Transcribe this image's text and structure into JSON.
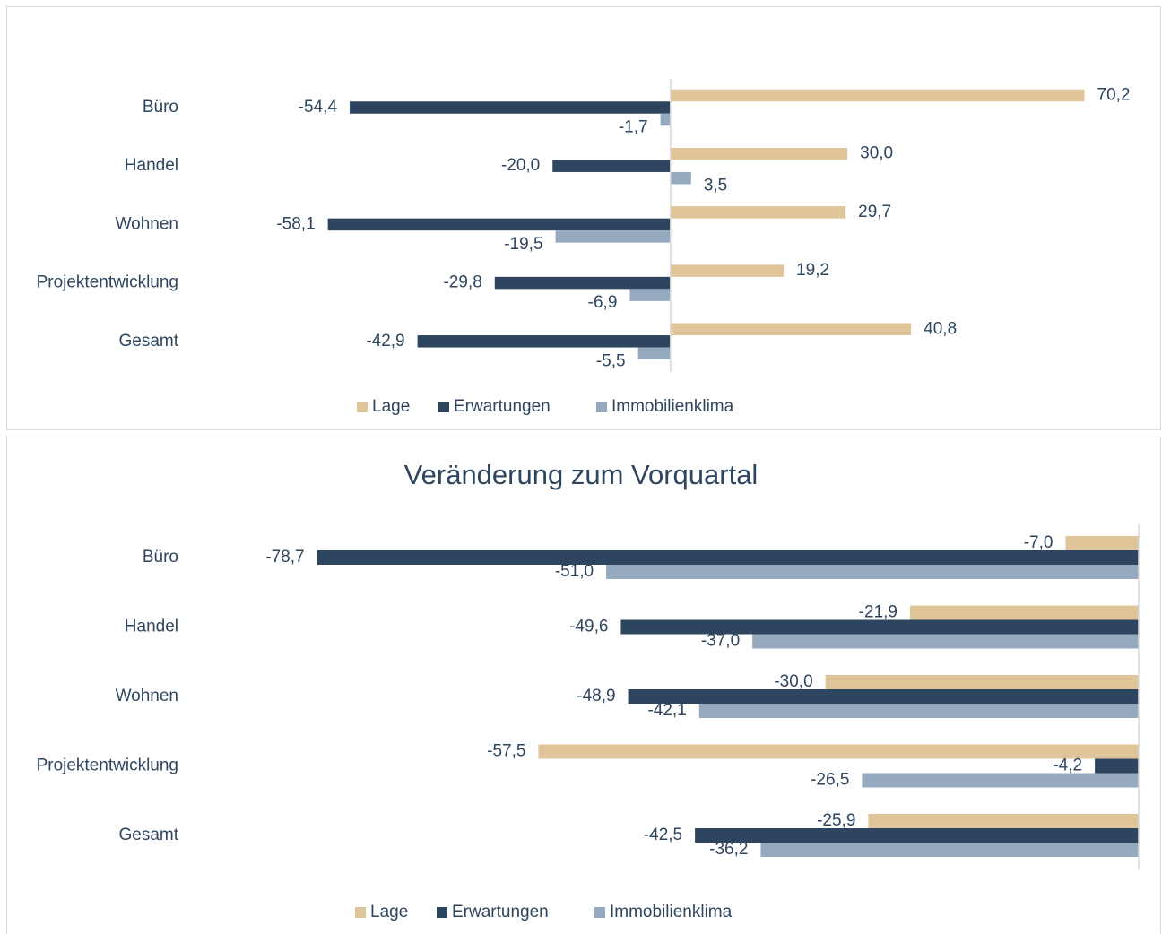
{
  "chart_data": [
    {
      "type": "bar",
      "orientation": "horizontal",
      "categories": [
        "Büro",
        "Handel",
        "Wohnen",
        "Projektentwicklung",
        "Gesamt"
      ],
      "series": [
        {
          "name": "Lage",
          "color": "#e0c49a",
          "values": [
            70.2,
            30.0,
            29.7,
            19.2,
            40.8
          ],
          "value_labels": [
            "70,2",
            "30,0",
            "29,7",
            "19,2",
            "40,8"
          ]
        },
        {
          "name": "Erwartungen",
          "color": "#2e4560",
          "values": [
            -54.4,
            -20.0,
            -58.1,
            -29.8,
            -42.9
          ],
          "value_labels": [
            "-54,4",
            "-20,0",
            "-58,1",
            "-29,8",
            "-42,9"
          ]
        },
        {
          "name": "Immobilienklima",
          "color": "#95a9bf",
          "values": [
            -1.7,
            3.5,
            -19.5,
            -6.9,
            -5.5
          ],
          "value_labels": [
            "-1,7",
            "3,5",
            "-19,5",
            "-6,9",
            "-5,5"
          ]
        }
      ],
      "xlim": [
        -80,
        80
      ],
      "legend": "bottom"
    },
    {
      "type": "bar",
      "orientation": "horizontal",
      "title": "Veränderung zum Vorquartal",
      "categories": [
        "Büro",
        "Handel",
        "Wohnen",
        "Projektentwicklung",
        "Gesamt"
      ],
      "series": [
        {
          "name": "Lage",
          "color": "#e0c49a",
          "values": [
            -7.0,
            -21.9,
            -30.0,
            -57.5,
            -25.9
          ],
          "value_labels": [
            "-7,0",
            "-21,9",
            "-30,0",
            "-57,5",
            "-25,9"
          ]
        },
        {
          "name": "Erwartungen",
          "color": "#2e4560",
          "values": [
            -78.7,
            -49.6,
            -48.9,
            -4.2,
            -42.5
          ],
          "value_labels": [
            "-78,7",
            "-49,6",
            "-48,9",
            "-4,2",
            "-42,5"
          ]
        },
        {
          "name": "Immobilienklima",
          "color": "#95a9bf",
          "values": [
            -51.0,
            -37.0,
            -42.1,
            -26.5,
            -36.2
          ],
          "value_labels": [
            "-51,0",
            "-37,0",
            "-42,1",
            "-26,5",
            "-36,2"
          ]
        }
      ],
      "xlim": [
        -90,
        0
      ],
      "legend": "bottom"
    }
  ]
}
